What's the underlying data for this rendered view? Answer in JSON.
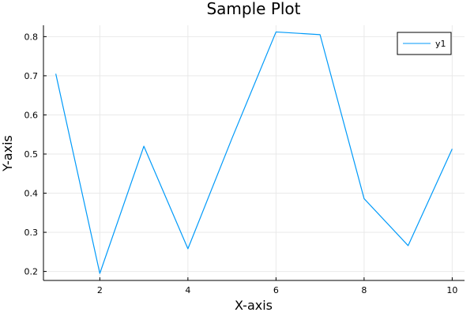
{
  "chart_data": {
    "type": "line",
    "title": "Sample Plot",
    "xlabel": "X-axis",
    "ylabel": "Y-axis",
    "x": [
      1,
      2,
      3,
      4,
      5,
      6,
      7,
      8,
      9,
      10
    ],
    "series": [
      {
        "name": "y1",
        "color": "#009af9",
        "values": [
          0.705,
          0.195,
          0.52,
          0.258,
          0.54,
          0.812,
          0.805,
          0.386,
          0.266,
          0.513
        ]
      }
    ],
    "xlim": [
      0.72,
      10.28
    ],
    "ylim": [
      0.177,
      0.829
    ],
    "xticks": [
      2,
      4,
      6,
      8,
      10
    ],
    "yticks": [
      0.2,
      0.3,
      0.4,
      0.5,
      0.6,
      0.7,
      0.8
    ],
    "xtick_labels": [
      "2",
      "4",
      "6",
      "8",
      "10"
    ],
    "ytick_labels": [
      "0.2",
      "0.3",
      "0.4",
      "0.5",
      "0.6",
      "0.7",
      "0.8"
    ],
    "grid": true,
    "legend_position": "top-right"
  }
}
